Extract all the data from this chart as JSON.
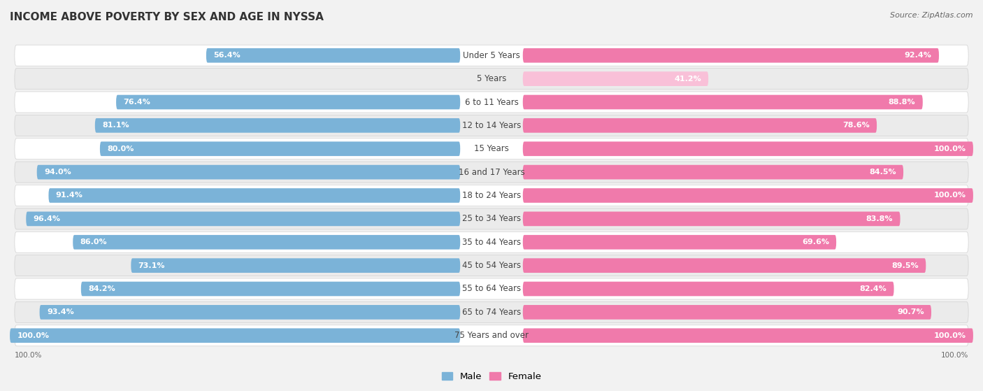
{
  "title": "INCOME ABOVE POVERTY BY SEX AND AGE IN NYSSA",
  "source": "Source: ZipAtlas.com",
  "categories": [
    "Under 5 Years",
    "5 Years",
    "6 to 11 Years",
    "12 to 14 Years",
    "15 Years",
    "16 and 17 Years",
    "18 to 24 Years",
    "25 to 34 Years",
    "35 to 44 Years",
    "45 to 54 Years",
    "55 to 64 Years",
    "65 to 74 Years",
    "75 Years and over"
  ],
  "male": [
    56.4,
    0.0,
    76.4,
    81.1,
    80.0,
    94.0,
    91.4,
    96.4,
    86.0,
    73.1,
    84.2,
    93.4,
    100.0
  ],
  "female": [
    92.4,
    41.2,
    88.8,
    78.6,
    100.0,
    84.5,
    100.0,
    83.8,
    69.6,
    89.5,
    82.4,
    90.7,
    100.0
  ],
  "male_color": "#7bb3d8",
  "female_color": "#f07aab",
  "female_color_light": "#f9c0d8",
  "bg_color": "#f2f2f2",
  "row_bg": "#ffffff",
  "row_alt_bg": "#f0f0f0",
  "title_fontsize": 11,
  "label_fontsize": 8.5,
  "value_fontsize": 8,
  "legend_fontsize": 9.5,
  "source_fontsize": 8
}
